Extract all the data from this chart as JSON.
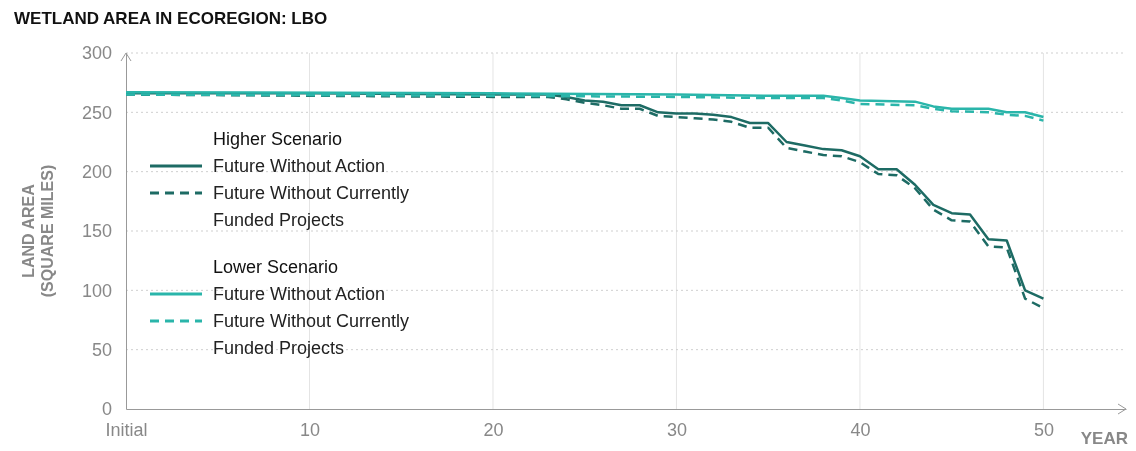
{
  "chart_data": {
    "type": "line",
    "title": "WETLAND AREA IN ECOREGION: LBO",
    "xlabel": "YEAR",
    "ylabel": "LAND AREA (SQUARE MILES)",
    "annotations": [
      "Higher Scenario",
      "Lower Scenario"
    ],
    "xlim": [
      0,
      54.5
    ],
    "xticks": [
      {
        "value": 0,
        "label": "Initial"
      },
      10,
      20,
      30,
      40,
      50
    ],
    "ylim": [
      0,
      300
    ],
    "yticks": [
      0,
      50,
      100,
      150,
      200,
      250,
      300
    ],
    "grid": true,
    "legend": "left",
    "series": [
      {
        "name": "Future Without Action",
        "color": "#1d6b64",
        "line_style": "solid",
        "x": [
          0,
          10,
          20,
          23,
          24,
          25,
          26,
          27,
          28,
          29,
          30,
          31,
          32,
          33,
          34,
          35,
          36,
          37,
          38,
          39,
          40,
          41,
          42,
          43,
          44,
          45,
          46,
          47,
          48,
          49,
          50
        ],
        "values": [
          266,
          266,
          265,
          265,
          263,
          260,
          259,
          256,
          256,
          250,
          249,
          249,
          248,
          246,
          241,
          241,
          225,
          222,
          219,
          218,
          213,
          202,
          202,
          189,
          172,
          165,
          164,
          143,
          142,
          100,
          93
        ]
      },
      {
        "name": "Future Without Currently Funded Projects",
        "color": "#1d6b64",
        "line_style": "dashed",
        "x": [
          0,
          10,
          20,
          23,
          24,
          25,
          26,
          27,
          28,
          29,
          30,
          31,
          32,
          33,
          34,
          35,
          36,
          37,
          38,
          39,
          40,
          41,
          42,
          43,
          44,
          45,
          46,
          47,
          48,
          49,
          50
        ],
        "values": [
          265,
          264,
          263,
          263,
          261,
          258,
          256,
          253,
          253,
          247,
          246,
          245,
          244,
          242,
          237,
          237,
          220,
          217,
          214,
          213,
          208,
          198,
          197,
          186,
          168,
          159,
          158,
          137,
          136,
          93,
          85
        ]
      },
      {
        "name": "Future Without Action",
        "color": "#2ab5aa",
        "line_style": "solid",
        "x": [
          0,
          20,
          30,
          35,
          38,
          39,
          40,
          43,
          44,
          45,
          47,
          48,
          49,
          50
        ],
        "values": [
          267,
          266,
          265,
          264,
          264,
          262,
          260,
          259,
          255,
          253,
          253,
          250,
          250,
          246
        ]
      },
      {
        "name": "Future Without Currently Funded Projects",
        "color": "#2ab5aa",
        "line_style": "dashed",
        "x": [
          0,
          20,
          30,
          35,
          38,
          39,
          40,
          43,
          44,
          45,
          47,
          48,
          49,
          50
        ],
        "values": [
          265,
          264,
          263,
          262,
          262,
          260,
          257,
          256,
          253,
          251,
          250,
          248,
          247,
          243
        ]
      }
    ]
  }
}
